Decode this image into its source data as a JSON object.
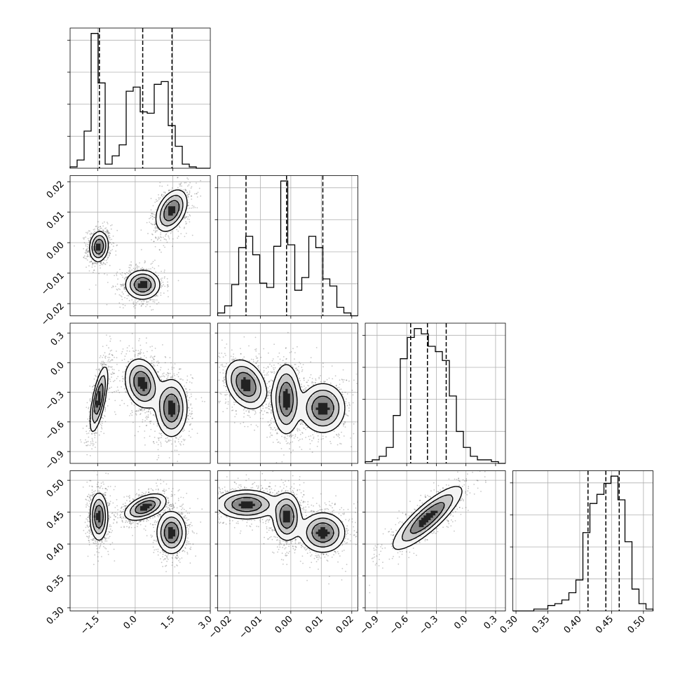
{
  "chart_data": {
    "type": "corner",
    "n_parameters": 4,
    "grid": true,
    "parameters": [
      {
        "ticks": [
          -1.5,
          0.0,
          1.5,
          3.0
        ],
        "tick_labels": [
          "−1.5",
          "0.0",
          "1.5",
          "3.0"
        ],
        "range": [
          -2.6,
          3.0
        ]
      },
      {
        "ticks": [
          -0.02,
          -0.01,
          0.0,
          0.01,
          0.02
        ],
        "tick_labels": [
          "−0.02",
          "−0.01",
          "0.00",
          "0.01",
          "0.02"
        ],
        "range": [
          -0.024,
          0.022
        ]
      },
      {
        "ticks": [
          -0.9,
          -0.6,
          -0.3,
          0.0,
          0.3
        ],
        "tick_labels": [
          "−0.9",
          "−0.6",
          "−0.3",
          "0.0",
          "0.3"
        ],
        "range": [
          -1.02,
          0.4
        ]
      },
      {
        "ticks": [
          0.3,
          0.35,
          0.4,
          0.45,
          0.5
        ],
        "tick_labels": [
          "0.30",
          "0.35",
          "0.40",
          "0.45",
          "0.50"
        ],
        "range": [
          0.295,
          0.515
        ]
      }
    ],
    "histograms": [
      {
        "bins": [
          -2.6,
          -2.32,
          -2.04,
          -1.76,
          -1.48,
          -1.2,
          -0.92,
          -0.64,
          -0.36,
          -0.08,
          0.2,
          0.48,
          0.76,
          1.04,
          1.32,
          1.6,
          1.88,
          2.16,
          2.44,
          2.72,
          3.0
        ],
        "counts": [
          1,
          6,
          27,
          98,
          62,
          3,
          9,
          17,
          56,
          59,
          41,
          40,
          61,
          63,
          31,
          16,
          3,
          1,
          0,
          0
        ],
        "quantiles": [
          -1.43,
          0.3,
          1.47
        ]
      },
      {
        "bins": [
          -0.024,
          -0.0217,
          -0.0194,
          -0.0171,
          -0.0148,
          -0.0125,
          -0.0102,
          -0.0079,
          -0.0056,
          -0.0033,
          -0.001,
          0.0013,
          0.0036,
          0.0059,
          0.0082,
          0.0105,
          0.0128,
          0.0151,
          0.0174,
          0.0197,
          0.022
        ],
        "counts": [
          2,
          7,
          22,
          48,
          56,
          43,
          23,
          20,
          49,
          95,
          50,
          18,
          27,
          56,
          48,
          26,
          21,
          6,
          2,
          0
        ],
        "quantiles": [
          -0.0147,
          -0.0014,
          0.0105
        ]
      },
      {
        "bins": [
          -1.02,
          -0.949,
          -0.878,
          -0.807,
          -0.736,
          -0.665,
          -0.594,
          -0.523,
          -0.452,
          -0.381,
          -0.31,
          -0.239,
          -0.168,
          -0.097,
          -0.026,
          0.045,
          0.116,
          0.187,
          0.258,
          0.329,
          0.4
        ],
        "counts": [
          1,
          2,
          4,
          9,
          27,
          59,
          71,
          76,
          73,
          66,
          63,
          58,
          38,
          18,
          9,
          4,
          2,
          2,
          1,
          0
        ],
        "quantiles": [
          -0.56,
          -0.39,
          -0.2
        ]
      },
      {
        "bins": [
          0.295,
          0.306,
          0.317,
          0.328,
          0.339,
          0.35,
          0.361,
          0.372,
          0.383,
          0.394,
          0.405,
          0.416,
          0.427,
          0.438,
          0.449,
          0.46,
          0.471,
          0.482,
          0.493,
          0.504,
          0.515
        ],
        "counts": [
          0,
          0,
          0,
          1,
          1,
          3,
          4,
          6,
          10,
          17,
          43,
          59,
          64,
          70,
          74,
          61,
          38,
          12,
          4,
          1
        ],
        "quantiles": [
          0.413,
          0.441,
          0.462
        ]
      }
    ],
    "joint_modes": [
      {
        "pair": [
          0,
          1
        ],
        "modes": [
          {
            "center": [
              -1.45,
              -0.0013
            ],
            "sd": [
              0.18,
              0.0024
            ],
            "rho": 0.1,
            "weight": 1.0
          },
          {
            "center": [
              0.3,
              -0.0138
            ],
            "sd": [
              0.33,
              0.0023
            ],
            "rho": 0.0,
            "weight": 1.0
          },
          {
            "center": [
              1.45,
              0.0105
            ],
            "sd": [
              0.3,
              0.0033
            ],
            "rho": 0.4,
            "weight": 1.0
          }
        ]
      },
      {
        "pair": [
          0,
          2
        ],
        "modes": [
          {
            "center": [
              -1.45,
              -0.37
            ],
            "sd": [
              0.17,
              0.16
            ],
            "rho": 0.7,
            "weight": 1.0
          },
          {
            "center": [
              0.28,
              -0.21
            ],
            "sd": [
              0.33,
              0.12
            ],
            "rho": -0.2,
            "weight": 1.0
          },
          {
            "center": [
              1.45,
              -0.46
            ],
            "sd": [
              0.3,
              0.14
            ],
            "rho": 0.0,
            "weight": 1.0
          }
        ]
      },
      {
        "pair": [
          1,
          2
        ],
        "modes": [
          {
            "center": [
              -0.0147,
              -0.22
            ],
            "sd": [
              0.0032,
              0.12
            ],
            "rho": -0.3,
            "weight": 1.0
          },
          {
            "center": [
              -0.0015,
              -0.37
            ],
            "sd": [
              0.0022,
              0.17
            ],
            "rho": 0.0,
            "weight": 1.0
          },
          {
            "center": [
              0.0105,
              -0.46
            ],
            "sd": [
              0.0035,
              0.12
            ],
            "rho": 0.0,
            "weight": 1.0
          }
        ]
      },
      {
        "pair": [
          0,
          3
        ],
        "modes": [
          {
            "center": [
              -1.45,
              0.443
            ],
            "sd": [
              0.17,
              0.018
            ],
            "rho": 0.0,
            "weight": 1.0
          },
          {
            "center": [
              0.4,
              0.458
            ],
            "sd": [
              0.4,
              0.01
            ],
            "rho": 0.5,
            "weight": 1.0
          },
          {
            "center": [
              1.45,
              0.418
            ],
            "sd": [
              0.28,
              0.016
            ],
            "rho": 0.0,
            "weight": 1.0
          }
        ]
      },
      {
        "pair": [
          1,
          3
        ],
        "modes": [
          {
            "center": [
              -0.0145,
              0.462
            ],
            "sd": [
              0.0048,
              0.011
            ],
            "rho": 0.0,
            "weight": 1.0
          },
          {
            "center": [
              -0.0013,
              0.443
            ],
            "sd": [
              0.0022,
              0.018
            ],
            "rho": 0.0,
            "weight": 1.0
          },
          {
            "center": [
              0.0105,
              0.418
            ],
            "sd": [
              0.0035,
              0.015
            ],
            "rho": 0.0,
            "weight": 1.0
          }
        ]
      },
      {
        "pair": [
          2,
          3
        ],
        "modes": [
          {
            "center": [
              -0.39,
              0.441
            ],
            "sd": [
              0.17,
              0.024
            ],
            "rho": 0.85,
            "weight": 1.0
          }
        ]
      }
    ]
  }
}
